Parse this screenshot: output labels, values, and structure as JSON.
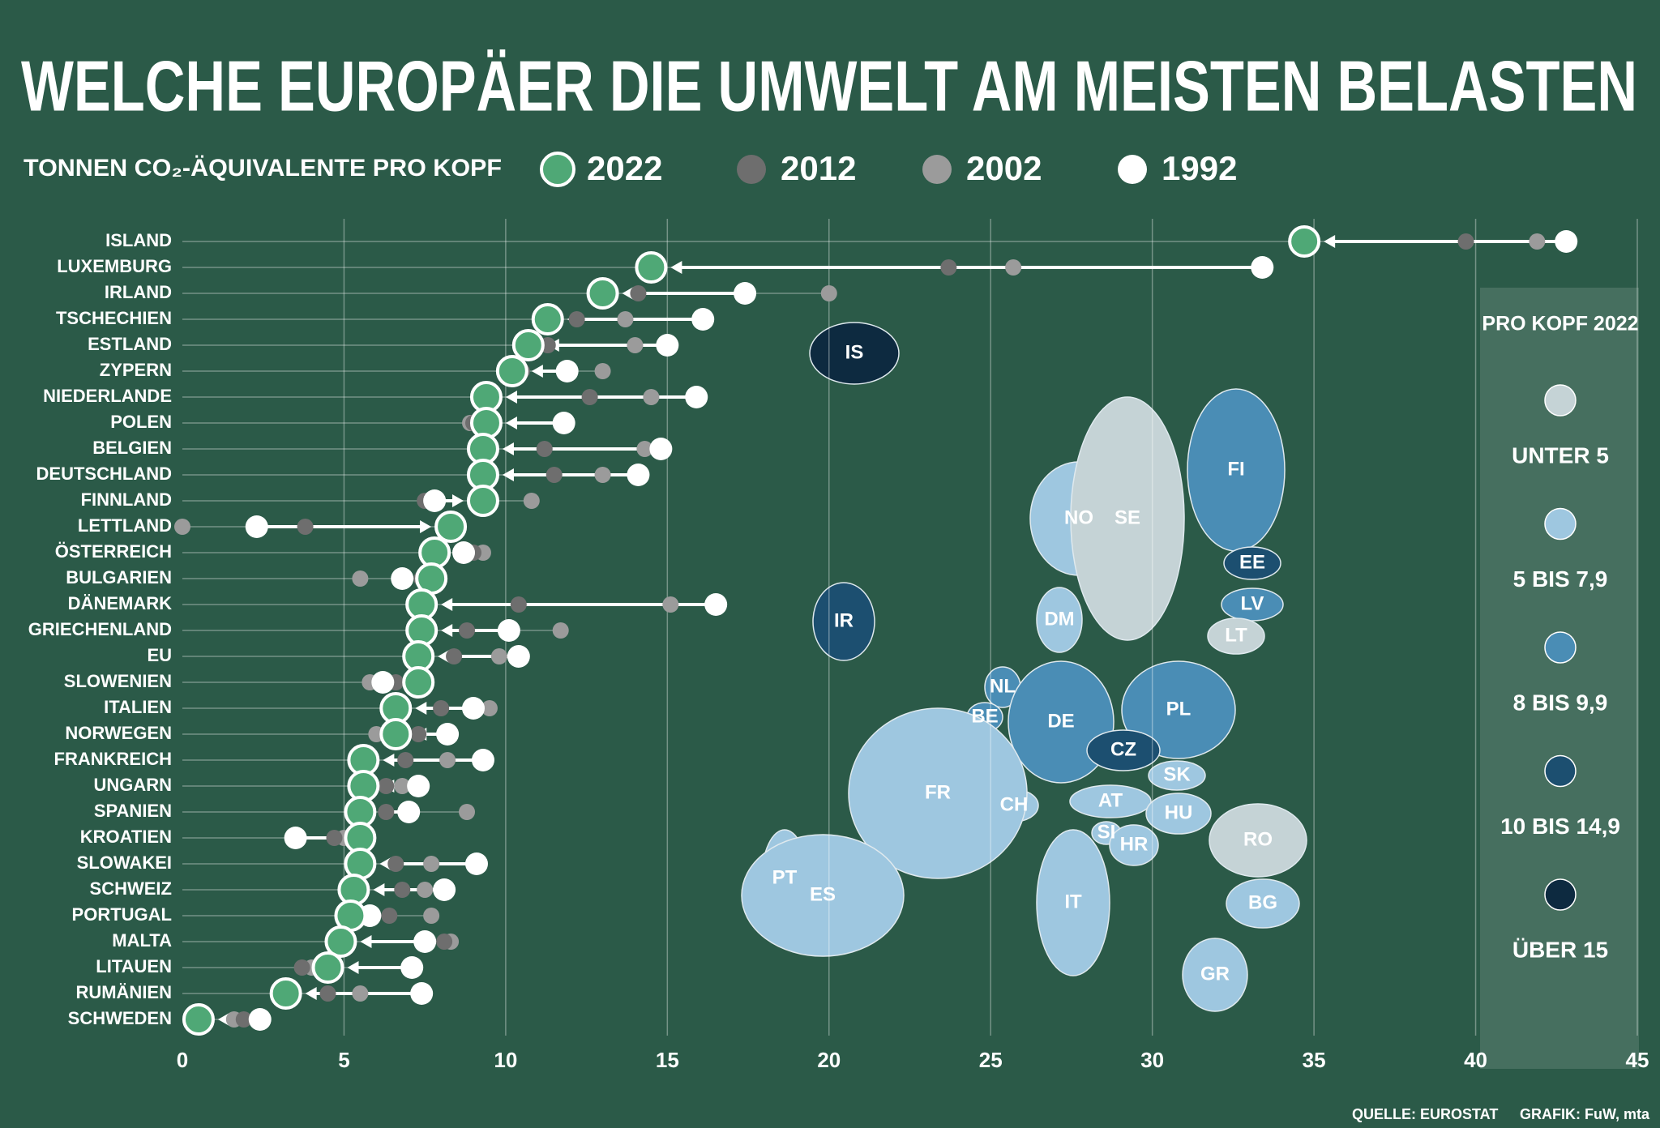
{
  "chart_data": {
    "type": "dotplot",
    "title": "WELCHE EUROPÄER DIE UMWELT AM MEISTEN BELASTEN",
    "subtitle": "TONNEN CO₂-ÄQUIVALENTE PRO KOPF",
    "categories": [
      "ISLAND",
      "LUXEMBURG",
      "IRLAND",
      "TSCHECHIEN",
      "ESTLAND",
      "ZYPERN",
      "NIEDERLANDE",
      "POLEN",
      "BELGIEN",
      "DEUTSCHLAND",
      "FINNLAND",
      "LETTLAND",
      "ÖSTERREICH",
      "BULGARIEN",
      "DÄNEMARK",
      "GRIECHENLAND",
      "EU",
      "SLOWENIEN",
      "ITALIEN",
      "NORWEGEN",
      "FRANKREICH",
      "UNGARN",
      "SPANIEN",
      "KROATIEN",
      "SLOWAKEI",
      "SCHWEIZ",
      "PORTUGAL",
      "MALTA",
      "LITAUEN",
      "RUMÄNIEN",
      "SCHWEDEN"
    ],
    "series": [
      {
        "name": "2022",
        "color": "#4fa876",
        "values": [
          34.7,
          14.5,
          13.0,
          11.3,
          10.7,
          10.2,
          9.4,
          9.4,
          9.3,
          9.3,
          9.3,
          8.3,
          7.8,
          7.7,
          7.4,
          7.4,
          7.3,
          7.3,
          6.6,
          6.6,
          5.6,
          5.6,
          5.5,
          5.5,
          5.5,
          5.3,
          5.2,
          4.9,
          4.5,
          3.2,
          0.5
        ]
      },
      {
        "name": "2012",
        "color": "#6e6e6e",
        "values": [
          39.7,
          23.7,
          14.1,
          12.2,
          11.3,
          10.5,
          12.6,
          9.0,
          11.2,
          11.5,
          7.5,
          3.8,
          9.0,
          7.4,
          10.4,
          8.8,
          8.4,
          6.6,
          8.0,
          7.3,
          6.9,
          6.3,
          6.3,
          4.7,
          6.6,
          6.8,
          6.4,
          8.1,
          3.7,
          4.5,
          1.9
        ]
      },
      {
        "name": "2002",
        "color": "#9b9b9b",
        "values": [
          41.9,
          25.7,
          20.0,
          13.7,
          14.0,
          13.0,
          14.5,
          8.9,
          14.3,
          13.0,
          10.8,
          0.0,
          9.3,
          5.5,
          15.1,
          11.7,
          9.8,
          5.8,
          9.5,
          6.0,
          8.2,
          6.8,
          8.8,
          5.0,
          7.7,
          7.5,
          7.7,
          8.3,
          4.0,
          5.5,
          1.6
        ]
      },
      {
        "name": "1992",
        "color": "#ffffff",
        "values": [
          42.8,
          33.4,
          17.4,
          16.1,
          15.0,
          11.9,
          15.9,
          11.8,
          14.8,
          14.1,
          7.8,
          2.3,
          8.7,
          6.8,
          16.5,
          10.1,
          10.4,
          6.2,
          9.0,
          8.2,
          9.3,
          7.3,
          7.0,
          3.5,
          9.1,
          8.1,
          5.8,
          7.5,
          7.1,
          7.4,
          2.4
        ]
      }
    ],
    "xlim": [
      0,
      45
    ],
    "xticks": [
      0,
      5,
      10,
      15,
      20,
      25,
      30,
      35,
      40,
      45
    ],
    "grid": true
  },
  "map": {
    "title": "PRO KOPF 2022",
    "classes": [
      {
        "label": "UNTER 5",
        "color": "#c5d3d6"
      },
      {
        "label": "5 BIS 7,9",
        "color": "#9ec7e0"
      },
      {
        "label": "8 BIS 9,9",
        "color": "#4a8db5"
      },
      {
        "label": "10 BIS 14,9",
        "color": "#1c4f70"
      },
      {
        "label": "ÜBER 15",
        "color": "#0d2a40"
      }
    ],
    "countries": [
      {
        "code": "IS",
        "class": 4
      },
      {
        "code": "IR",
        "class": 3
      },
      {
        "code": "NO",
        "class": 1
      },
      {
        "code": "SE",
        "class": 0
      },
      {
        "code": "FI",
        "class": 2
      },
      {
        "code": "EE",
        "class": 3
      },
      {
        "code": "LV",
        "class": 2
      },
      {
        "code": "LT",
        "class": 0
      },
      {
        "code": "DM",
        "class": 1
      },
      {
        "code": "NL",
        "class": 2
      },
      {
        "code": "BE",
        "class": 2
      },
      {
        "code": "DE",
        "class": 2
      },
      {
        "code": "PL",
        "class": 2
      },
      {
        "code": "CZ",
        "class": 3
      },
      {
        "code": "SK",
        "class": 1
      },
      {
        "code": "AT",
        "class": 1
      },
      {
        "code": "CH",
        "class": 1
      },
      {
        "code": "FR",
        "class": 1
      },
      {
        "code": "HU",
        "class": 1
      },
      {
        "code": "SI",
        "class": 1
      },
      {
        "code": "HR",
        "class": 1
      },
      {
        "code": "RO",
        "class": 0
      },
      {
        "code": "IT",
        "class": 1
      },
      {
        "code": "PT",
        "class": 1
      },
      {
        "code": "ES",
        "class": 1
      },
      {
        "code": "BG",
        "class": 1
      },
      {
        "code": "GR",
        "class": 1
      }
    ]
  },
  "footer": {
    "source": "QUELLE: EUROSTAT",
    "credit": "GRAFIK: FuW, mta"
  }
}
